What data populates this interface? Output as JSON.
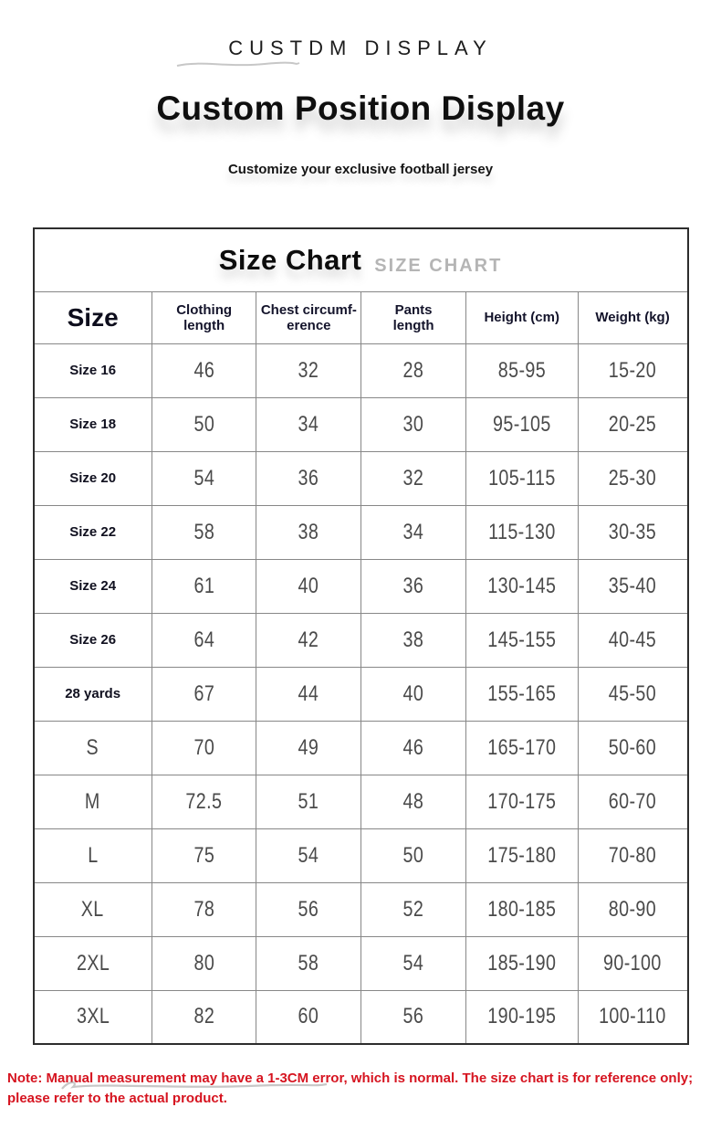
{
  "header": {
    "brand": "CUSTDM DISPLAY",
    "title": "Custom Position Display",
    "subtitle": "Customize your exclusive football jersey"
  },
  "size_chart": {
    "title": "Size Chart",
    "title_echo": "SIZE CHART",
    "columns": [
      "Size",
      "Clothing\nlength",
      "Chest circumf-\nerence",
      "Pants\nlength",
      "Height (cm)",
      "Weight (kg)"
    ],
    "rows": [
      [
        "Size 16",
        "46",
        "32",
        "28",
        "85-95",
        "15-20"
      ],
      [
        "Size 18",
        "50",
        "34",
        "30",
        "95-105",
        "20-25"
      ],
      [
        "Size 20",
        "54",
        "36",
        "32",
        "105-115",
        "25-30"
      ],
      [
        "Size 22",
        "58",
        "38",
        "34",
        "115-130",
        "30-35"
      ],
      [
        "Size 24",
        "61",
        "40",
        "36",
        "130-145",
        "35-40"
      ],
      [
        "Size 26",
        "64",
        "42",
        "38",
        "145-155",
        "40-45"
      ],
      [
        "28 yards",
        "67",
        "44",
        "40",
        "155-165",
        "45-50"
      ],
      [
        "S",
        "70",
        "49",
        "46",
        "165-170",
        "50-60"
      ],
      [
        "M",
        "72.5",
        "51",
        "48",
        "170-175",
        "60-70"
      ],
      [
        "L",
        "75",
        "54",
        "50",
        "175-180",
        "70-80"
      ],
      [
        "XL",
        "78",
        "56",
        "52",
        "180-185",
        "80-90"
      ],
      [
        "2XL",
        "80",
        "58",
        "54",
        "185-190",
        "90-100"
      ],
      [
        "3XL",
        "82",
        "60",
        "56",
        "190-195",
        "100-110"
      ]
    ]
  },
  "note": {
    "text": "Note: Manual measurement may have a 1-3CM error, which is normal. The size chart is for reference only;\nplease refer to the actual product."
  },
  "colors": {
    "note_red": "#d61420",
    "title_black": "#0f0f0f",
    "header_text_navy": "#14142b",
    "value_gray": "#4a4a4a",
    "echo_gray": "#b5b5b5",
    "table_border_outer": "#2d2d2d",
    "table_border_inner": "#878787",
    "background": "#ffffff"
  }
}
